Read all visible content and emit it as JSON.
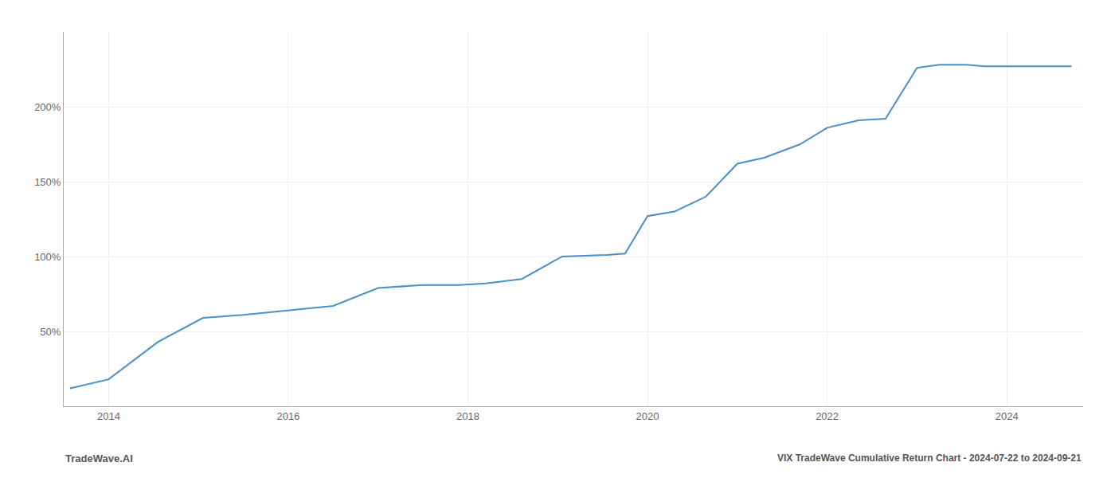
{
  "chart_data": {
    "type": "line",
    "title": "VIX TradeWave Cumulative Return Chart - 2024-07-22 to 2024-09-21",
    "annotations": [
      "TradeWave.AI"
    ],
    "x": [
      2013.57,
      2014.0,
      2014.55,
      2015.05,
      2015.5,
      2016.0,
      2016.5,
      2017.0,
      2017.5,
      2017.9,
      2018.2,
      2018.6,
      2019.05,
      2019.55,
      2019.75,
      2020.0,
      2020.3,
      2020.65,
      2021.0,
      2021.3,
      2021.7,
      2022.0,
      2022.35,
      2022.65,
      2023.0,
      2023.25,
      2023.55,
      2023.75,
      2024.0,
      2024.25,
      2024.72
    ],
    "values": [
      12,
      18,
      43,
      59,
      61,
      64,
      67,
      79,
      81,
      81,
      82,
      85,
      100,
      101,
      102,
      127,
      130,
      140,
      162,
      166,
      175,
      186,
      191,
      192,
      226,
      228,
      228,
      227,
      227,
      227,
      227
    ],
    "color": "#4a90c4",
    "xlim": [
      2013.5,
      2024.85
    ],
    "ylim": [
      0,
      250
    ],
    "xticks": [
      2014,
      2016,
      2018,
      2020,
      2022,
      2024
    ],
    "yticks": [
      {
        "value": 50,
        "label": "50%"
      },
      {
        "value": 100,
        "label": "100%"
      },
      {
        "value": 150,
        "label": "150%"
      },
      {
        "value": 200,
        "label": "200%"
      }
    ],
    "grid": true
  }
}
